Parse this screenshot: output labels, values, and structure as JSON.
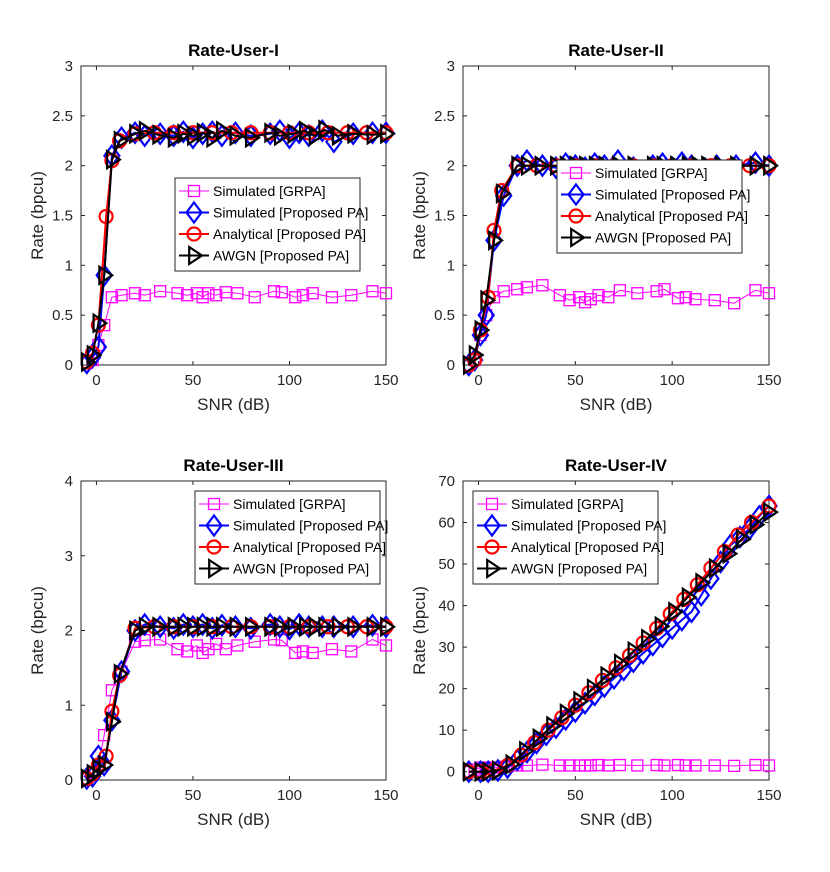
{
  "figure": {
    "background": "#ffffff"
  },
  "series_styles": [
    {
      "name": "Simulated [GRPA]",
      "color": "#ff00ff",
      "marker": "square",
      "line_width": 1
    },
    {
      "name": "Simulated [Proposed PA]",
      "color": "#0000ff",
      "marker": "diamond",
      "line_width": 2
    },
    {
      "name": "Analytical [Proposed PA]",
      "color": "#ff0000",
      "marker": "circle",
      "line_width": 2
    },
    {
      "name": "AWGN [Proposed PA]",
      "color": "#000000",
      "marker": "triangle-right",
      "line_width": 2
    }
  ],
  "chart_data": [
    {
      "type": "line",
      "title": "Rate-User-I",
      "xlabel": "SNR (dB)",
      "ylabel": "Rate (bpcu)",
      "xlim": [
        -8,
        150
      ],
      "ylim": [
        0,
        3
      ],
      "xticks": [
        0,
        50,
        100,
        150
      ],
      "yticks": [
        0,
        0.5,
        1,
        1.5,
        2,
        2.5,
        3
      ],
      "ytick_labels": [
        "0",
        "0.5",
        "1",
        "1.5",
        "2",
        "2.5",
        "3"
      ],
      "grid": false,
      "legend_position": "center-right",
      "series": [
        {
          "name": "Simulated [GRPA]",
          "x": [
            -5,
            -2,
            1,
            4,
            8,
            13,
            20,
            25,
            33,
            42,
            47,
            52,
            55,
            58,
            62,
            67,
            73,
            82,
            92,
            96,
            103,
            107,
            112,
            122,
            132,
            143,
            150
          ],
          "y": [
            0.02,
            0.05,
            0.2,
            0.4,
            0.68,
            0.7,
            0.72,
            0.7,
            0.74,
            0.72,
            0.7,
            0.72,
            0.68,
            0.72,
            0.7,
            0.73,
            0.72,
            0.68,
            0.74,
            0.73,
            0.68,
            0.7,
            0.72,
            0.68,
            0.7,
            0.74,
            0.72
          ]
        },
        {
          "name": "Simulated [Proposed PA]",
          "x": [
            -5,
            -2,
            1,
            4,
            8,
            13,
            20,
            25,
            33,
            40,
            45,
            50,
            55,
            60,
            65,
            72,
            80,
            90,
            95,
            100,
            105,
            110,
            117,
            123,
            133,
            143,
            150
          ],
          "y": [
            0.02,
            0.08,
            0.18,
            0.9,
            2.1,
            2.28,
            2.33,
            2.3,
            2.32,
            2.3,
            2.34,
            2.28,
            2.32,
            2.34,
            2.3,
            2.33,
            2.3,
            2.32,
            2.35,
            2.28,
            2.33,
            2.3,
            2.35,
            2.24,
            2.32,
            2.33,
            2.33
          ]
        },
        {
          "name": "Analytical [Proposed PA]",
          "x": [
            -5,
            -2,
            1,
            5,
            8,
            12,
            20,
            30,
            40,
            50,
            60,
            70,
            80,
            90,
            100,
            110,
            120,
            130,
            140,
            150
          ],
          "y": [
            0.03,
            0.12,
            0.4,
            1.49,
            2.05,
            2.25,
            2.32,
            2.33,
            2.33,
            2.33,
            2.33,
            2.33,
            2.33,
            2.33,
            2.33,
            2.33,
            2.33,
            2.33,
            2.33,
            2.33
          ]
        },
        {
          "name": "AWGN [Proposed PA]",
          "x": [
            -5,
            -2,
            1,
            4,
            8,
            12,
            20,
            25,
            32,
            40,
            45,
            50,
            55,
            60,
            65,
            72,
            80,
            90,
            95,
            102,
            108,
            113,
            118,
            125,
            133,
            143,
            150
          ],
          "y": [
            0.03,
            0.1,
            0.42,
            0.9,
            2.06,
            2.25,
            2.32,
            2.35,
            2.31,
            2.28,
            2.32,
            2.3,
            2.33,
            2.28,
            2.35,
            2.3,
            2.28,
            2.33,
            2.3,
            2.32,
            2.35,
            2.3,
            2.36,
            2.3,
            2.32,
            2.31,
            2.32
          ]
        }
      ]
    },
    {
      "type": "line",
      "title": "Rate-User-II",
      "xlabel": "SNR (dB)",
      "ylabel": "Rate (bpcu)",
      "xlim": [
        -8,
        150
      ],
      "ylim": [
        0,
        3
      ],
      "xticks": [
        0,
        50,
        100,
        150
      ],
      "yticks": [
        0,
        0.5,
        1,
        1.5,
        2,
        2.5,
        3
      ],
      "ytick_labels": [
        "0",
        "0.5",
        "1",
        "1.5",
        "2",
        "2.5",
        "3"
      ],
      "grid": false,
      "legend_position": "center-right",
      "series": [
        {
          "name": "Simulated [GRPA]",
          "x": [
            -5,
            -2,
            1,
            4,
            8,
            13,
            20,
            25,
            33,
            42,
            47,
            52,
            55,
            58,
            62,
            67,
            73,
            82,
            92,
            96,
            103,
            107,
            112,
            122,
            132,
            143,
            150
          ],
          "y": [
            0.0,
            0.05,
            0.3,
            0.5,
            0.68,
            0.74,
            0.76,
            0.78,
            0.8,
            0.7,
            0.65,
            0.68,
            0.63,
            0.66,
            0.7,
            0.68,
            0.75,
            0.72,
            0.74,
            0.76,
            0.67,
            0.68,
            0.66,
            0.65,
            0.62,
            0.75,
            0.72
          ]
        },
        {
          "name": "Simulated [Proposed PA]",
          "x": [
            -5,
            -2,
            1,
            4,
            8,
            13,
            20,
            25,
            33,
            40,
            45,
            50,
            55,
            60,
            65,
            72,
            80,
            90,
            95,
            100,
            105,
            110,
            117,
            123,
            133,
            143,
            150
          ],
          "y": [
            0.0,
            0.05,
            0.3,
            0.5,
            1.25,
            1.7,
            2.0,
            2.05,
            2.0,
            1.98,
            2.02,
            2.0,
            1.98,
            2.02,
            2.0,
            2.05,
            1.98,
            2.0,
            2.02,
            1.98,
            2.03,
            2.0,
            1.97,
            2.0,
            2.0,
            2.03,
            2.0
          ]
        },
        {
          "name": "Analytical [Proposed PA]",
          "x": [
            -5,
            -2,
            1,
            5,
            8,
            12,
            20,
            30,
            40,
            50,
            60,
            70,
            80,
            90,
            100,
            110,
            120,
            130,
            140,
            150
          ],
          "y": [
            0.0,
            0.05,
            0.35,
            0.68,
            1.35,
            1.75,
            2.0,
            2.0,
            2.0,
            2.0,
            2.0,
            2.0,
            2.0,
            2.0,
            2.0,
            2.0,
            2.0,
            2.0,
            2.0,
            2.0
          ]
        },
        {
          "name": "AWGN [Proposed PA]",
          "x": [
            -5,
            -2,
            1,
            4,
            8,
            12,
            20,
            25,
            32,
            40,
            45,
            50,
            55,
            60,
            65,
            72,
            80,
            90,
            95,
            102,
            108,
            113,
            118,
            125,
            133,
            143,
            150
          ],
          "y": [
            0.0,
            0.1,
            0.35,
            0.65,
            1.25,
            1.72,
            2.0,
            2.0,
            2.0,
            2.0,
            2.0,
            2.0,
            2.0,
            2.0,
            2.0,
            2.0,
            2.0,
            2.0,
            2.0,
            2.0,
            2.0,
            2.0,
            2.0,
            2.0,
            2.0,
            2.0,
            2.0
          ]
        }
      ]
    },
    {
      "type": "line",
      "title": "Rate-User-III",
      "xlabel": "SNR (dB)",
      "ylabel": "Rate (bpcu)",
      "xlim": [
        -8,
        150
      ],
      "ylim": [
        0,
        4
      ],
      "xticks": [
        0,
        50,
        100,
        150
      ],
      "yticks": [
        0,
        1,
        2,
        3,
        4
      ],
      "ytick_labels": [
        "0",
        "1",
        "2",
        "3",
        "4"
      ],
      "grid": false,
      "legend_position": "top-right",
      "series": [
        {
          "name": "Simulated [GRPA]",
          "x": [
            -5,
            -2,
            1,
            4,
            8,
            13,
            20,
            25,
            33,
            42,
            47,
            52,
            55,
            58,
            62,
            67,
            73,
            82,
            92,
            96,
            103,
            107,
            112,
            122,
            132,
            143,
            150
          ],
          "y": [
            0.02,
            0.1,
            0.2,
            0.6,
            1.2,
            1.45,
            1.85,
            1.87,
            1.88,
            1.75,
            1.72,
            1.8,
            1.7,
            1.75,
            1.82,
            1.75,
            1.8,
            1.85,
            1.88,
            1.87,
            1.7,
            1.72,
            1.7,
            1.75,
            1.72,
            1.88,
            1.8
          ]
        },
        {
          "name": "Simulated [Proposed PA]",
          "x": [
            -5,
            -2,
            1,
            4,
            8,
            13,
            20,
            25,
            33,
            40,
            45,
            50,
            55,
            60,
            65,
            72,
            80,
            90,
            95,
            100,
            105,
            110,
            117,
            123,
            133,
            143,
            150
          ],
          "y": [
            0.02,
            0.05,
            0.32,
            0.2,
            0.8,
            1.45,
            2.0,
            2.08,
            2.05,
            2.03,
            2.08,
            2.05,
            2.08,
            2.03,
            2.07,
            2.05,
            2.03,
            2.08,
            2.05,
            2.02,
            2.08,
            2.05,
            2.05,
            2.05,
            2.05,
            2.07,
            2.05
          ]
        },
        {
          "name": "Analytical [Proposed PA]",
          "x": [
            -5,
            -2,
            1,
            5,
            8,
            12,
            20,
            30,
            40,
            50,
            60,
            70,
            80,
            90,
            100,
            110,
            120,
            130,
            140,
            150
          ],
          "y": [
            0.02,
            0.08,
            0.2,
            0.32,
            0.92,
            1.4,
            2.03,
            2.05,
            2.05,
            2.05,
            2.05,
            2.05,
            2.05,
            2.05,
            2.05,
            2.05,
            2.05,
            2.05,
            2.05,
            2.05
          ]
        },
        {
          "name": "AWGN [Proposed PA]",
          "x": [
            -5,
            -2,
            1,
            4,
            8,
            12,
            20,
            25,
            32,
            40,
            45,
            50,
            55,
            60,
            65,
            72,
            80,
            90,
            95,
            102,
            108,
            113,
            118,
            125,
            133,
            143,
            150
          ],
          "y": [
            0.02,
            0.08,
            0.15,
            0.2,
            0.78,
            1.42,
            2.0,
            2.05,
            2.05,
            2.05,
            2.05,
            2.05,
            2.05,
            2.05,
            2.05,
            2.05,
            2.05,
            2.05,
            2.05,
            2.05,
            2.05,
            2.05,
            2.05,
            2.05,
            2.05,
            2.05,
            2.05
          ]
        }
      ]
    },
    {
      "type": "line",
      "title": "Rate-User-IV",
      "xlabel": "SNR (dB)",
      "ylabel": "Rate (bpcu)",
      "xlim": [
        -8,
        150
      ],
      "ylim": [
        -2,
        70
      ],
      "xticks": [
        0,
        50,
        100,
        150
      ],
      "yticks": [
        0,
        10,
        20,
        30,
        40,
        50,
        60,
        70
      ],
      "ytick_labels": [
        "0",
        "10",
        "20",
        "30",
        "40",
        "50",
        "60",
        "70"
      ],
      "grid": false,
      "legend_position": "top-left",
      "series": [
        {
          "name": "Simulated [GRPA]",
          "x": [
            -5,
            -2,
            1,
            4,
            8,
            13,
            20,
            25,
            33,
            42,
            47,
            52,
            55,
            58,
            62,
            67,
            73,
            82,
            92,
            96,
            103,
            107,
            112,
            122,
            132,
            143,
            150
          ],
          "y": [
            0.0,
            0.5,
            1.0,
            0.8,
            1.0,
            1.2,
            1.5,
            1.5,
            1.7,
            1.5,
            1.5,
            1.5,
            1.5,
            1.5,
            1.6,
            1.5,
            1.6,
            1.5,
            1.6,
            1.5,
            1.6,
            1.5,
            1.5,
            1.5,
            1.4,
            1.6,
            1.5
          ]
        },
        {
          "name": "Simulated [Proposed PA]",
          "x": [
            -5,
            1,
            5,
            10,
            15,
            20,
            25,
            30,
            35,
            40,
            45,
            50,
            55,
            60,
            65,
            70,
            75,
            80,
            85,
            90,
            95,
            100,
            105,
            110,
            115,
            120,
            125,
            130,
            135,
            140,
            145,
            150
          ],
          "y": [
            0.0,
            0.0,
            0.0,
            0.3,
            1.0,
            2.8,
            4.7,
            6.9,
            8.9,
            10.6,
            12.6,
            14.5,
            16.5,
            18.5,
            20.5,
            22.5,
            24.5,
            26.5,
            28.5,
            30.5,
            32.5,
            34.5,
            36.5,
            38.5,
            42.5,
            46.5,
            50.5,
            54.5,
            56.5,
            58.5,
            61.5,
            64.0
          ]
        },
        {
          "name": "Analytical [Proposed PA]",
          "x": [
            -5,
            1,
            8,
            15,
            22,
            29,
            36,
            43,
            50,
            57,
            64,
            71,
            78,
            85,
            92,
            99,
            106,
            113,
            120,
            127,
            134,
            141,
            150
          ],
          "y": [
            0.0,
            0.0,
            0.3,
            1.5,
            4.0,
            7.0,
            10.0,
            13.0,
            16.0,
            19.0,
            22.0,
            25.0,
            28.0,
            31.0,
            34.5,
            38.0,
            41.5,
            45.0,
            49.0,
            53.0,
            57.0,
            60.0,
            64.0
          ]
        },
        {
          "name": "AWGN [Proposed PA]",
          "x": [
            -5,
            1,
            5,
            10,
            17,
            24,
            31,
            38,
            45,
            52,
            59,
            66,
            73,
            80,
            87,
            94,
            101,
            108,
            115,
            122,
            129,
            136,
            143,
            150
          ],
          "y": [
            0.0,
            0.0,
            0.0,
            0.3,
            1.8,
            5.0,
            8.0,
            11.0,
            14.0,
            17.0,
            20.0,
            23.0,
            26.0,
            29.0,
            32.0,
            35.0,
            38.5,
            42.0,
            45.5,
            49.0,
            52.5,
            56.0,
            59.5,
            62.5
          ]
        }
      ]
    }
  ]
}
